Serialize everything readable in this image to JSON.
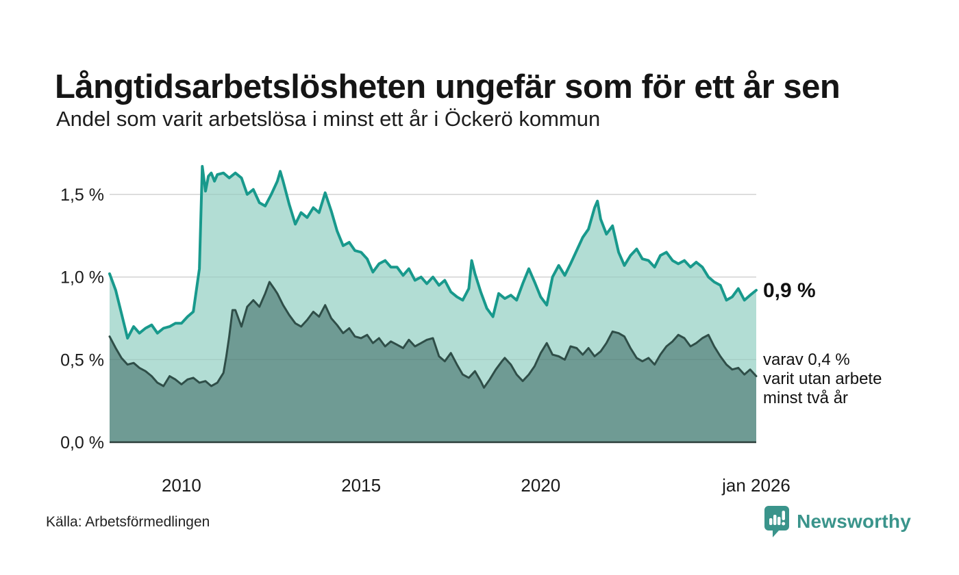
{
  "header": {
    "title": "Långtidsarbetslösheten ungefär som för ett år sen",
    "subtitle": "Andel som varit arbetslösa i minst ett år i Öckerö kommun"
  },
  "chart_data": {
    "type": "area",
    "title": "Långtidsarbetslösheten ungefär som för ett år sen",
    "subtitle": "Andel som varit arbetslösa i minst ett år i Öckerö kommun",
    "x_range": [
      2008,
      2026
    ],
    "ylim": [
      0,
      1.75
    ],
    "grid": true,
    "legend_position": "none",
    "x_axis": {
      "ticks": [
        {
          "label": "2010",
          "value": 2010
        },
        {
          "label": "2015",
          "value": 2015
        },
        {
          "label": "2020",
          "value": 2020
        },
        {
          "label": "jan 2026",
          "value": 2026
        }
      ]
    },
    "y_axis": {
      "ticks": [
        {
          "label": "0,0 %",
          "value": 0.0
        },
        {
          "label": "0,5 %",
          "value": 0.5
        },
        {
          "label": "1,0 %",
          "value": 1.0
        },
        {
          "label": "1,5 %",
          "value": 1.5
        }
      ]
    },
    "colors": {
      "line_1yr": "#18998c",
      "fill_1yr": "#b2ddd4",
      "line_2yr": "#2f4e48",
      "fill_2yr": "#6f9b94",
      "gridline": "#e3e3e3",
      "baseline": "#2c3e3a"
    },
    "series": [
      {
        "name": "arbetslösa minst ett år",
        "end_value": 0.9,
        "points": [
          [
            2008.0,
            1.02
          ],
          [
            2008.17,
            0.92
          ],
          [
            2008.33,
            0.78
          ],
          [
            2008.5,
            0.63
          ],
          [
            2008.67,
            0.7
          ],
          [
            2008.83,
            0.66
          ],
          [
            2009.0,
            0.69
          ],
          [
            2009.17,
            0.71
          ],
          [
            2009.33,
            0.66
          ],
          [
            2009.5,
            0.69
          ],
          [
            2009.67,
            0.7
          ],
          [
            2009.83,
            0.72
          ],
          [
            2010.0,
            0.72
          ],
          [
            2010.17,
            0.76
          ],
          [
            2010.33,
            0.79
          ],
          [
            2010.5,
            1.05
          ],
          [
            2010.58,
            1.67
          ],
          [
            2010.67,
            1.52
          ],
          [
            2010.75,
            1.61
          ],
          [
            2010.83,
            1.63
          ],
          [
            2010.92,
            1.58
          ],
          [
            2011.0,
            1.62
          ],
          [
            2011.17,
            1.63
          ],
          [
            2011.33,
            1.6
          ],
          [
            2011.5,
            1.63
          ],
          [
            2011.67,
            1.6
          ],
          [
            2011.83,
            1.5
          ],
          [
            2012.0,
            1.53
          ],
          [
            2012.17,
            1.45
          ],
          [
            2012.33,
            1.43
          ],
          [
            2012.5,
            1.5
          ],
          [
            2012.67,
            1.58
          ],
          [
            2012.75,
            1.64
          ],
          [
            2012.83,
            1.58
          ],
          [
            2013.0,
            1.44
          ],
          [
            2013.17,
            1.32
          ],
          [
            2013.33,
            1.39
          ],
          [
            2013.5,
            1.36
          ],
          [
            2013.67,
            1.42
          ],
          [
            2013.83,
            1.39
          ],
          [
            2014.0,
            1.51
          ],
          [
            2014.17,
            1.4
          ],
          [
            2014.33,
            1.28
          ],
          [
            2014.5,
            1.19
          ],
          [
            2014.67,
            1.21
          ],
          [
            2014.83,
            1.16
          ],
          [
            2015.0,
            1.15
          ],
          [
            2015.17,
            1.11
          ],
          [
            2015.33,
            1.03
          ],
          [
            2015.5,
            1.08
          ],
          [
            2015.67,
            1.1
          ],
          [
            2015.83,
            1.06
          ],
          [
            2016.0,
            1.06
          ],
          [
            2016.17,
            1.01
          ],
          [
            2016.33,
            1.05
          ],
          [
            2016.5,
            0.98
          ],
          [
            2016.67,
            1.0
          ],
          [
            2016.83,
            0.96
          ],
          [
            2017.0,
            1.0
          ],
          [
            2017.17,
            0.95
          ],
          [
            2017.33,
            0.98
          ],
          [
            2017.5,
            0.91
          ],
          [
            2017.67,
            0.88
          ],
          [
            2017.83,
            0.86
          ],
          [
            2018.0,
            0.93
          ],
          [
            2018.08,
            1.1
          ],
          [
            2018.17,
            1.02
          ],
          [
            2018.33,
            0.91
          ],
          [
            2018.5,
            0.81
          ],
          [
            2018.67,
            0.76
          ],
          [
            2018.83,
            0.9
          ],
          [
            2019.0,
            0.87
          ],
          [
            2019.17,
            0.89
          ],
          [
            2019.33,
            0.86
          ],
          [
            2019.5,
            0.96
          ],
          [
            2019.67,
            1.05
          ],
          [
            2019.83,
            0.97
          ],
          [
            2020.0,
            0.88
          ],
          [
            2020.17,
            0.83
          ],
          [
            2020.33,
            1.0
          ],
          [
            2020.5,
            1.07
          ],
          [
            2020.67,
            1.01
          ],
          [
            2020.83,
            1.08
          ],
          [
            2021.0,
            1.16
          ],
          [
            2021.17,
            1.24
          ],
          [
            2021.33,
            1.29
          ],
          [
            2021.5,
            1.42
          ],
          [
            2021.58,
            1.46
          ],
          [
            2021.67,
            1.35
          ],
          [
            2021.83,
            1.26
          ],
          [
            2022.0,
            1.31
          ],
          [
            2022.17,
            1.15
          ],
          [
            2022.33,
            1.07
          ],
          [
            2022.5,
            1.13
          ],
          [
            2022.67,
            1.17
          ],
          [
            2022.83,
            1.11
          ],
          [
            2023.0,
            1.1
          ],
          [
            2023.17,
            1.06
          ],
          [
            2023.33,
            1.13
          ],
          [
            2023.5,
            1.15
          ],
          [
            2023.67,
            1.1
          ],
          [
            2023.83,
            1.08
          ],
          [
            2024.0,
            1.1
          ],
          [
            2024.17,
            1.06
          ],
          [
            2024.33,
            1.09
          ],
          [
            2024.5,
            1.06
          ],
          [
            2024.67,
            1.0
          ],
          [
            2024.83,
            0.97
          ],
          [
            2025.0,
            0.95
          ],
          [
            2025.17,
            0.86
          ],
          [
            2025.33,
            0.88
          ],
          [
            2025.5,
            0.93
          ],
          [
            2025.67,
            0.86
          ],
          [
            2025.83,
            0.89
          ],
          [
            2026.0,
            0.92
          ]
        ]
      },
      {
        "name": "varav arbetslösa minst två år",
        "end_value": 0.4,
        "points": [
          [
            2008.0,
            0.64
          ],
          [
            2008.17,
            0.57
          ],
          [
            2008.33,
            0.51
          ],
          [
            2008.5,
            0.47
          ],
          [
            2008.67,
            0.48
          ],
          [
            2008.83,
            0.45
          ],
          [
            2009.0,
            0.43
          ],
          [
            2009.17,
            0.4
          ],
          [
            2009.33,
            0.36
          ],
          [
            2009.5,
            0.34
          ],
          [
            2009.67,
            0.4
          ],
          [
            2009.83,
            0.38
          ],
          [
            2010.0,
            0.35
          ],
          [
            2010.17,
            0.38
          ],
          [
            2010.33,
            0.39
          ],
          [
            2010.5,
            0.36
          ],
          [
            2010.67,
            0.37
          ],
          [
            2010.83,
            0.34
          ],
          [
            2011.0,
            0.36
          ],
          [
            2011.17,
            0.42
          ],
          [
            2011.25,
            0.52
          ],
          [
            2011.33,
            0.64
          ],
          [
            2011.42,
            0.8
          ],
          [
            2011.5,
            0.8
          ],
          [
            2011.67,
            0.7
          ],
          [
            2011.83,
            0.82
          ],
          [
            2012.0,
            0.86
          ],
          [
            2012.17,
            0.82
          ],
          [
            2012.33,
            0.9
          ],
          [
            2012.45,
            0.97
          ],
          [
            2012.58,
            0.93
          ],
          [
            2012.67,
            0.9
          ],
          [
            2012.83,
            0.83
          ],
          [
            2013.0,
            0.77
          ],
          [
            2013.17,
            0.72
          ],
          [
            2013.33,
            0.7
          ],
          [
            2013.5,
            0.74
          ],
          [
            2013.67,
            0.79
          ],
          [
            2013.83,
            0.76
          ],
          [
            2014.0,
            0.83
          ],
          [
            2014.17,
            0.75
          ],
          [
            2014.33,
            0.71
          ],
          [
            2014.5,
            0.66
          ],
          [
            2014.67,
            0.69
          ],
          [
            2014.83,
            0.64
          ],
          [
            2015.0,
            0.63
          ],
          [
            2015.17,
            0.65
          ],
          [
            2015.33,
            0.6
          ],
          [
            2015.5,
            0.63
          ],
          [
            2015.67,
            0.58
          ],
          [
            2015.83,
            0.61
          ],
          [
            2016.0,
            0.59
          ],
          [
            2016.17,
            0.57
          ],
          [
            2016.33,
            0.62
          ],
          [
            2016.5,
            0.58
          ],
          [
            2016.67,
            0.6
          ],
          [
            2016.83,
            0.62
          ],
          [
            2017.0,
            0.63
          ],
          [
            2017.17,
            0.52
          ],
          [
            2017.33,
            0.49
          ],
          [
            2017.5,
            0.54
          ],
          [
            2017.67,
            0.47
          ],
          [
            2017.83,
            0.41
          ],
          [
            2018.0,
            0.39
          ],
          [
            2018.17,
            0.43
          ],
          [
            2018.33,
            0.37
          ],
          [
            2018.42,
            0.33
          ],
          [
            2018.58,
            0.38
          ],
          [
            2018.75,
            0.44
          ],
          [
            2018.92,
            0.49
          ],
          [
            2019.0,
            0.51
          ],
          [
            2019.17,
            0.47
          ],
          [
            2019.33,
            0.41
          ],
          [
            2019.5,
            0.37
          ],
          [
            2019.67,
            0.41
          ],
          [
            2019.83,
            0.46
          ],
          [
            2020.0,
            0.54
          ],
          [
            2020.17,
            0.6
          ],
          [
            2020.33,
            0.53
          ],
          [
            2020.5,
            0.52
          ],
          [
            2020.67,
            0.5
          ],
          [
            2020.83,
            0.58
          ],
          [
            2021.0,
            0.57
          ],
          [
            2021.17,
            0.53
          ],
          [
            2021.33,
            0.57
          ],
          [
            2021.5,
            0.52
          ],
          [
            2021.67,
            0.55
          ],
          [
            2021.83,
            0.6
          ],
          [
            2022.0,
            0.67
          ],
          [
            2022.17,
            0.66
          ],
          [
            2022.33,
            0.64
          ],
          [
            2022.5,
            0.57
          ],
          [
            2022.67,
            0.51
          ],
          [
            2022.83,
            0.49
          ],
          [
            2023.0,
            0.51
          ],
          [
            2023.17,
            0.47
          ],
          [
            2023.33,
            0.53
          ],
          [
            2023.5,
            0.58
          ],
          [
            2023.67,
            0.61
          ],
          [
            2023.83,
            0.65
          ],
          [
            2024.0,
            0.63
          ],
          [
            2024.17,
            0.58
          ],
          [
            2024.33,
            0.6
          ],
          [
            2024.5,
            0.63
          ],
          [
            2024.67,
            0.65
          ],
          [
            2024.83,
            0.58
          ],
          [
            2025.0,
            0.52
          ],
          [
            2025.17,
            0.47
          ],
          [
            2025.33,
            0.44
          ],
          [
            2025.5,
            0.45
          ],
          [
            2025.67,
            0.41
          ],
          [
            2025.83,
            0.44
          ],
          [
            2026.0,
            0.4
          ]
        ]
      }
    ],
    "annotations": {
      "primary": "0,9 %",
      "secondary_lines": [
        "varav 0,4 %",
        "varit utan arbete",
        "minst två år"
      ]
    }
  },
  "footer": {
    "source": "Källa: Arbetsförmedlingen",
    "brand": "Newsworthy",
    "brand_color": "#3a948b"
  }
}
